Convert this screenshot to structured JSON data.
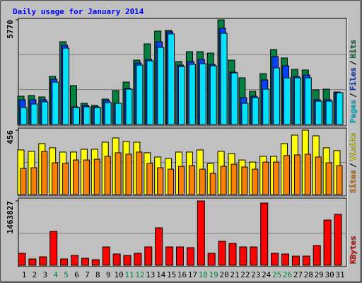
{
  "chart_data": {
    "type": "bar",
    "title": "Daily usage for January 2014",
    "categories": [
      "1",
      "2",
      "3",
      "4",
      "5",
      "6",
      "7",
      "8",
      "9",
      "10",
      "11",
      "12",
      "13",
      "14",
      "15",
      "16",
      "17",
      "18",
      "19",
      "20",
      "21",
      "22",
      "23",
      "24",
      "25",
      "26",
      "27",
      "28",
      "29",
      "30",
      "31"
    ],
    "category_colors": [
      "#000000",
      "#000000",
      "#000000",
      "#008040",
      "#008040",
      "#000000",
      "#000000",
      "#000000",
      "#000000",
      "#000000",
      "#008040",
      "#008040",
      "#000000",
      "#000000",
      "#000000",
      "#000000",
      "#000000",
      "#008040",
      "#008040",
      "#000000",
      "#000000",
      "#000000",
      "#000000",
      "#000000",
      "#008040",
      "#008040",
      "#000000",
      "#000000",
      "#000000",
      "#000000",
      "#000000"
    ],
    "legend_separator": "/",
    "panels": [
      {
        "ylim": [
          0,
          5770
        ],
        "yticks": [
          5770
        ],
        "series": [
          {
            "name": "Hits",
            "color": "#008040",
            "values": [
              1560,
              1599,
              1520,
              2651,
              4561,
              2144,
              1170,
              1053,
              1403,
              1871,
              2339,
              3548,
              4444,
              5146,
              5185,
              3470,
              4016,
              4016,
              3938,
              5770,
              3548,
              2573,
              1832,
              2807,
              4133,
              3665,
              3041,
              3002,
              1910,
              1949,
              1793
            ]
          },
          {
            "name": "Files",
            "color": "#0040ff",
            "values": [
              1365,
              1365,
              1365,
              2495,
              4367,
              975,
              1053,
              975,
              1326,
              1170,
              1988,
              3392,
              3587,
              4562,
              5108,
              3275,
              3470,
              3587,
              3314,
              5303,
              2885,
              1482,
              1560,
              2456,
              3743,
              3236,
              2651,
              2729,
              1365,
              1365,
              1755
            ]
          },
          {
            "name": "Pages",
            "color": "#00e0ff",
            "values": [
              936,
              1131,
              1248,
              2339,
              4211,
              936,
              975,
              936,
              1209,
              1170,
              1950,
              3275,
              3509,
              4250,
              4991,
              3197,
              3314,
              3353,
              3236,
              5030,
              2846,
              1170,
              1482,
              1950,
              3119,
              2573,
              2573,
              2573,
              1287,
              1287,
              1755
            ]
          }
        ]
      },
      {
        "ylim": [
          0,
          456
        ],
        "yticks": [
          456
        ],
        "series": [
          {
            "name": "Visits",
            "color": "#ffff00",
            "values": [
              316,
              306,
              361,
              331,
              301,
              301,
              321,
              321,
              371,
              401,
              376,
              371,
              296,
              266,
              256,
              301,
              301,
              316,
              220,
              306,
              291,
              245,
              230,
              271,
              271,
              361,
              421,
              456,
              416,
              331,
              311
            ]
          },
          {
            "name": "Sites",
            "color": "#ff8000",
            "values": [
              185,
              190,
              306,
              225,
              220,
              245,
              245,
              250,
              271,
              296,
              286,
              301,
              220,
              190,
              180,
              200,
              205,
              180,
              150,
              200,
              215,
              195,
              180,
              230,
              230,
              276,
              281,
              286,
              266,
              225,
              205
            ]
          }
        ]
      },
      {
        "ylim": [
          0,
          1463827
        ],
        "yticks": [
          1463827
        ],
        "series": [
          {
            "name": "KBytes",
            "color": "#ff0000",
            "values": [
              273462,
              144774,
              193032,
              772128,
              144774,
              225204,
              160860,
              128688,
              418236,
              257376,
              225204,
              273462,
              418236,
              852558,
              418236,
              418236,
              402150,
              1463827,
              273462,
              546924,
              498666,
              418236,
              418236,
              1415568,
              273462,
              257376,
              209118,
              209118,
              450408,
              1029504,
              1158192
            ]
          }
        ]
      }
    ]
  }
}
